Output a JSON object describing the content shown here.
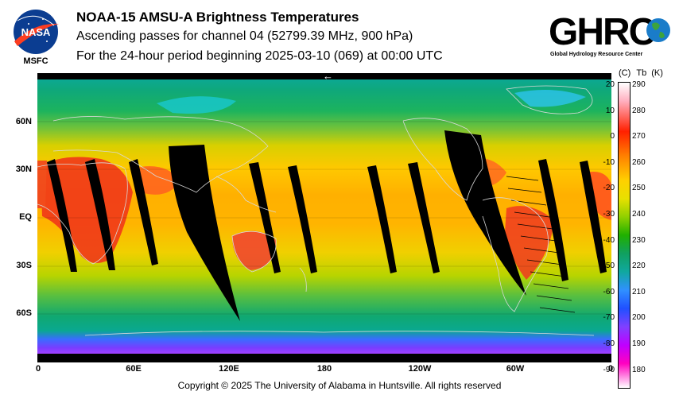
{
  "header": {
    "title": "NOAA-15 AMSU-A Brightness Temperatures",
    "line2": "Ascending passes for channel 04 (52799.39 MHz, 900 hPa)",
    "line3": "For the 24-hour period beginning 2025-03-10 (069) at 00:00 UTC"
  },
  "logos": {
    "nasa_text": "NASA",
    "nasa_sub": "MSFC",
    "ghrc_text": "GHRC",
    "ghrc_sub": "Global Hydrology Resource Center"
  },
  "map": {
    "lat_labels": [
      "60N",
      "30N",
      "EQ",
      "30S",
      "60S"
    ],
    "lon_labels": [
      "0",
      "60E",
      "120E",
      "180",
      "120W",
      "60W",
      "0"
    ],
    "direction_glyph": "←"
  },
  "colorbar": {
    "header_c": "(C)",
    "header_tb": "Tb",
    "header_k": "(K)",
    "celsius_ticks": [
      "20",
      "10",
      "0",
      "-10",
      "-20",
      "-30",
      "-40",
      "-50",
      "-60",
      "-70",
      "-80",
      "-90"
    ],
    "kelvin_ticks": [
      "290",
      "280",
      "270",
      "260",
      "250",
      "240",
      "230",
      "220",
      "210",
      "200",
      "190",
      "180"
    ]
  },
  "footer": {
    "copyright": "Copyright © 2025 The University of Alabama in Huntsville.  All rights reserved"
  }
}
